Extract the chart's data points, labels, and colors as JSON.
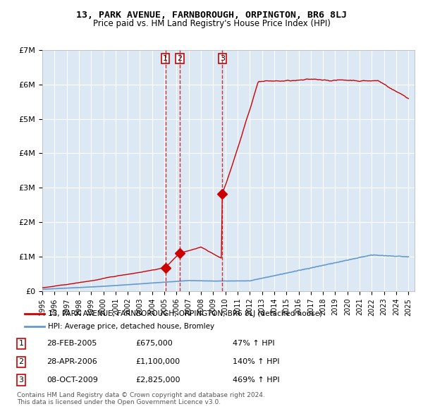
{
  "title": "13, PARK AVENUE, FARNBOROUGH, ORPINGTON, BR6 8LJ",
  "subtitle": "Price paid vs. HM Land Registry's House Price Index (HPI)",
  "xlabel": "",
  "ylabel": "",
  "bg_color": "#dce9f5",
  "plot_bg_color": "#dce9f5",
  "grid_color": "#ffffff",
  "sale_line_color": "#cc0000",
  "hpi_line_color": "#6699cc",
  "sale_marker_color": "#cc0000",
  "vertical_line_color": "#cc0000",
  "x_start_year": 1995,
  "x_end_year": 2025,
  "ylim": [
    0,
    7000000
  ],
  "yticks": [
    0,
    1000000,
    2000000,
    3000000,
    4000000,
    5000000,
    6000000,
    7000000
  ],
  "ytick_labels": [
    "£0",
    "£1M",
    "£2M",
    "£3M",
    "£4M",
    "£5M",
    "£6M",
    "£7M"
  ],
  "sale_dates": [
    "2005-02-28",
    "2006-04-28",
    "2009-10-08"
  ],
  "sale_prices": [
    675000,
    1100000,
    2825000
  ],
  "sale_labels": [
    "1",
    "2",
    "3"
  ],
  "legend_sale_label": "13, PARK AVENUE, FARNBOROUGH, ORPINGTON, BR6 8LJ (detached house)",
  "legend_hpi_label": "HPI: Average price, detached house, Bromley",
  "table_rows": [
    {
      "label": "1",
      "date": "28-FEB-2005",
      "price": "£675,000",
      "hpi": "47% ↑ HPI"
    },
    {
      "label": "2",
      "date": "28-APR-2006",
      "price": "£1,100,000",
      "hpi": "140% ↑ HPI"
    },
    {
      "label": "3",
      "date": "08-OCT-2009",
      "price": "£2,825,000",
      "hpi": "469% ↑ HPI"
    }
  ],
  "footer": "Contains HM Land Registry data © Crown copyright and database right 2024.\nThis data is licensed under the Open Government Licence v3.0."
}
